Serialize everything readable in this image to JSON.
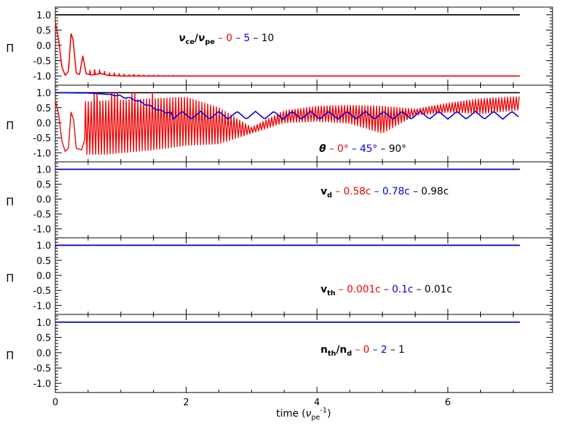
{
  "colors": {
    "red": "#ee0000",
    "blue": "#0000dd",
    "black": "#000000",
    "axis": "#000000",
    "background": "#ffffff"
  },
  "shared": {
    "xlabel_pre": "time (",
    "xlabel_sym": "ν",
    "xlabel_sub": "pe",
    "xlabel_sup": "-1",
    "xlabel_post": ")",
    "ylabel": "Π",
    "x_ticks": [
      "0",
      "2",
      "4",
      "6"
    ],
    "y_ticks": [
      "1.0",
      "0.5",
      "0.0",
      "-0.5",
      "-1.0"
    ]
  },
  "chart_data": [
    {
      "type": "line",
      "xlim": [
        0,
        7.6
      ],
      "ylim": [
        -1.3,
        1.25
      ],
      "xlabel": "",
      "ylabel": "Π",
      "legend": {
        "placement": "top-center",
        "label": {
          "sym1": "ν",
          "sub1": "ce",
          "sep": "/",
          "sym2": "ν",
          "sub2": "pe"
        },
        "entries": [
          {
            "label": "0",
            "color": "#ee0000"
          },
          {
            "label": "5",
            "color": "#0000dd"
          },
          {
            "label": "10",
            "color": "#000000"
          }
        ]
      },
      "series": [
        {
          "color": "#ee0000",
          "kind": "p1_red",
          "points": [
            [
              0.0,
              0.75
            ],
            [
              0.05,
              0.2
            ],
            [
              0.1,
              -0.7
            ],
            [
              0.15,
              -0.98
            ],
            [
              0.2,
              -0.85
            ],
            [
              0.24,
              0.38
            ],
            [
              0.27,
              0.2
            ],
            [
              0.32,
              -0.9
            ],
            [
              0.37,
              -0.95
            ],
            [
              0.42,
              -0.35
            ],
            [
              0.47,
              -0.92
            ],
            [
              0.55,
              -0.97
            ],
            [
              0.7,
              -0.92
            ],
            [
              0.8,
              -0.98
            ],
            [
              1.0,
              -1.0
            ],
            [
              7.1,
              -1.0
            ]
          ]
        },
        {
          "color": "#0000dd",
          "kind": "flat",
          "points": [
            [
              0,
              1.0
            ],
            [
              7.1,
              1.0
            ]
          ]
        },
        {
          "color": "#000000",
          "kind": "flat",
          "points": [
            [
              0,
              1.0
            ],
            [
              7.1,
              1.0
            ]
          ]
        }
      ]
    },
    {
      "type": "line",
      "xlim": [
        0,
        7.6
      ],
      "ylim": [
        -1.3,
        1.25
      ],
      "xlabel": "",
      "ylabel": "Π",
      "legend": {
        "placement": "bottom-center",
        "label": {
          "sym1": "θ"
        },
        "entries": [
          {
            "label": "0°",
            "color": "#ee0000"
          },
          {
            "label": "45°",
            "color": "#0000dd"
          },
          {
            "label": "90°",
            "color": "#000000"
          }
        ]
      },
      "series": [
        {
          "color": "#000000",
          "kind": "flat",
          "points": [
            [
              0,
              1.0
            ],
            [
              7.1,
              1.0
            ]
          ]
        },
        {
          "color": "#ee0000",
          "kind": "p2_red",
          "envelope_center": [
            [
              0.5,
              -0.2
            ],
            [
              1.5,
              -0.05
            ],
            [
              2.0,
              0.05
            ],
            [
              2.5,
              -0.1
            ],
            [
              3.0,
              -0.25
            ],
            [
              3.5,
              0.2
            ],
            [
              4.0,
              0.3
            ],
            [
              4.5,
              0.28
            ],
            [
              5.0,
              0.1
            ],
            [
              5.5,
              0.35
            ],
            [
              6.0,
              0.5
            ],
            [
              6.5,
              0.55
            ],
            [
              7.1,
              0.65
            ]
          ],
          "envelope_amplitude": [
            [
              0.5,
              0.9
            ],
            [
              1.5,
              0.85
            ],
            [
              2.0,
              0.8
            ],
            [
              2.5,
              0.6
            ],
            [
              3.0,
              0.1
            ],
            [
              3.5,
              0.2
            ],
            [
              4.0,
              0.25
            ],
            [
              4.5,
              0.3
            ],
            [
              5.0,
              0.45
            ],
            [
              5.5,
              0.1
            ],
            [
              6.0,
              0.15
            ],
            [
              6.5,
              0.25
            ],
            [
              7.1,
              0.22
            ]
          ]
        },
        {
          "color": "#0000dd",
          "kind": "p2_blue",
          "points": [
            [
              0.0,
              1.0
            ],
            [
              0.5,
              0.99
            ],
            [
              0.9,
              0.93
            ],
            [
              1.2,
              0.78
            ],
            [
              1.4,
              0.6
            ],
            [
              1.6,
              0.4
            ],
            [
              1.8,
              0.3
            ],
            [
              7.1,
              0.25
            ]
          ]
        }
      ]
    },
    {
      "type": "line",
      "xlim": [
        0,
        7.6
      ],
      "ylim": [
        -1.3,
        1.25
      ],
      "xlabel": "",
      "ylabel": "Π",
      "legend": {
        "placement": "center-right",
        "label": {
          "sym1": "v",
          "sub1": "d"
        },
        "entries": [
          {
            "label": "0.58c",
            "color": "#ee0000"
          },
          {
            "label": "0.78c",
            "color": "#0000dd"
          },
          {
            "label": "0.98c",
            "color": "#000000"
          }
        ]
      },
      "series": [
        {
          "color": "#000000",
          "kind": "flat",
          "points": [
            [
              0,
              1.0
            ],
            [
              7.1,
              1.0
            ]
          ]
        },
        {
          "color": "#0000dd",
          "kind": "flat",
          "points": [
            [
              0,
              1.0
            ],
            [
              7.1,
              1.0
            ]
          ]
        }
      ]
    },
    {
      "type": "line",
      "xlim": [
        0,
        7.6
      ],
      "ylim": [
        -1.3,
        1.25
      ],
      "xlabel": "",
      "ylabel": "Π",
      "legend": {
        "placement": "center-right",
        "label": {
          "sym1": "v",
          "sub1": "th"
        },
        "entries": [
          {
            "label": "0.001c",
            "color": "#ee0000"
          },
          {
            "label": "0.1c",
            "color": "#0000dd"
          },
          {
            "label": "0.01c",
            "color": "#000000"
          }
        ]
      },
      "series": [
        {
          "color": "#000000",
          "kind": "flat",
          "points": [
            [
              0,
              1.0
            ],
            [
              7.1,
              1.0
            ]
          ]
        },
        {
          "color": "#0000dd",
          "kind": "flat",
          "points": [
            [
              0,
              0.95
            ],
            [
              0.02,
              1.0
            ],
            [
              7.1,
              1.0
            ]
          ]
        }
      ]
    },
    {
      "type": "line",
      "xlim": [
        0,
        7.6
      ],
      "ylim": [
        -1.3,
        1.25
      ],
      "xlabel": "time",
      "ylabel": "Π",
      "legend": {
        "placement": "center-right",
        "label": {
          "sym1": "n",
          "sub1": "th",
          "sep": "/",
          "sym2": "n",
          "sub2": "d"
        },
        "entries": [
          {
            "label": "0",
            "color": "#ee0000"
          },
          {
            "label": "2",
            "color": "#0000dd"
          },
          {
            "label": "1",
            "color": "#000000"
          }
        ]
      },
      "series": [
        {
          "color": "#000000",
          "kind": "flat",
          "points": [
            [
              0,
              1.0
            ],
            [
              7.1,
              1.0
            ]
          ]
        },
        {
          "color": "#0000dd",
          "kind": "flat",
          "points": [
            [
              0,
              1.0
            ],
            [
              7.1,
              1.0
            ]
          ]
        }
      ]
    }
  ]
}
